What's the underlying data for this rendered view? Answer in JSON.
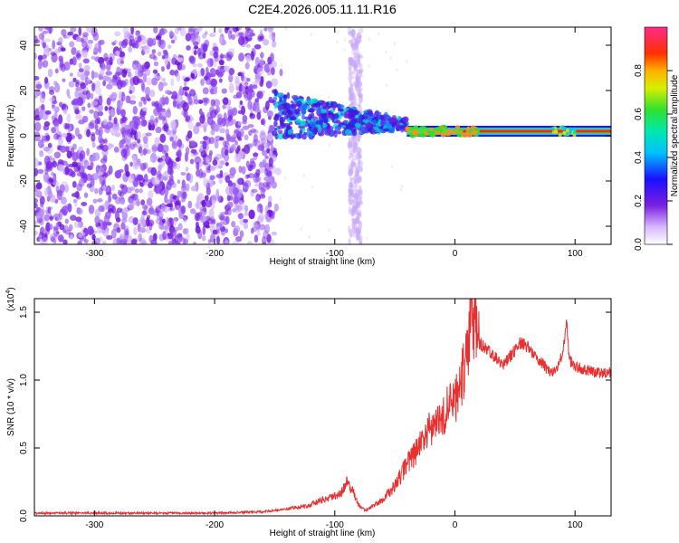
{
  "title": "C2E4.2026.005.11.11.R16",
  "chart_data": [
    {
      "type": "heatmap",
      "name": "spectrogram",
      "xlabel": "Height of straight line (km)",
      "ylabel": "Frequency (Hz)",
      "xlim": [
        -350,
        130
      ],
      "ylim": [
        -48,
        48
      ],
      "xticks": [
        -300,
        -200,
        -100,
        0,
        100
      ],
      "yticks": [
        -40,
        -20,
        0,
        20,
        40
      ],
      "xtick_labels": [
        "-300",
        "-200",
        "-100",
        "0",
        "100"
      ],
      "ytick_labels": [
        "-40",
        "-20",
        "0",
        "20",
        "40"
      ],
      "regions": [
        {
          "description": "broadband noise",
          "x_range": [
            -350,
            -150
          ],
          "f_range": [
            -48,
            48
          ],
          "amplitude": 0.15
        },
        {
          "description": "noise band",
          "x_range": [
            -88,
            -78
          ],
          "f_range": [
            -48,
            48
          ],
          "amplitude": 0.1
        },
        {
          "description": "signal onset",
          "x_range": [
            -150,
            -40
          ],
          "f_center": 5,
          "amplitude": 0.35
        },
        {
          "description": "carrier line",
          "x_range": [
            -40,
            130
          ],
          "f_center": 2,
          "amplitude": 0.9
        }
      ],
      "colorbar": {
        "label": "Normalized spectral amplitude",
        "range": [
          0,
          1
        ],
        "ticks": [
          0.0,
          0.2,
          0.4,
          0.6,
          0.8
        ],
        "tick_labels": [
          "0.0",
          "0.2",
          "0.4",
          "0.6",
          "0.8"
        ]
      }
    },
    {
      "type": "line",
      "name": "snr",
      "xlabel": "Height of straight line (km)",
      "ylabel": "SNR (10 * v/v)",
      "scale_label": "(x10",
      "scale_exp": "4",
      "scale_close": ")",
      "xlim": [
        -350,
        130
      ],
      "ylim": [
        0,
        1.6
      ],
      "xticks": [
        -300,
        -200,
        -100,
        0,
        100
      ],
      "yticks": [
        0.0,
        0.5,
        1.0,
        1.5
      ],
      "xtick_labels": [
        "-300",
        "-200",
        "-100",
        "0",
        "100"
      ],
      "ytick_labels": [
        "0.0",
        "0.5",
        "1.0",
        "1.5"
      ],
      "color": "#e83030",
      "series": [
        {
          "name": "SNR",
          "x": [
            -350,
            -300,
            -250,
            -200,
            -160,
            -140,
            -120,
            -110,
            -100,
            -95,
            -90,
            -85,
            -80,
            -75,
            -70,
            -60,
            -50,
            -40,
            -30,
            -20,
            -10,
            0,
            5,
            10,
            13,
            20,
            30,
            40,
            50,
            55,
            60,
            70,
            80,
            85,
            90,
            93,
            95,
            100,
            110,
            120,
            130
          ],
          "y": [
            0.02,
            0.02,
            0.02,
            0.02,
            0.03,
            0.05,
            0.08,
            0.12,
            0.14,
            0.16,
            0.25,
            0.18,
            0.08,
            0.04,
            0.06,
            0.12,
            0.22,
            0.38,
            0.5,
            0.65,
            0.75,
            0.85,
            1.0,
            1.15,
            1.55,
            1.28,
            1.2,
            1.1,
            1.22,
            1.28,
            1.25,
            1.15,
            1.05,
            1.08,
            1.2,
            1.45,
            1.15,
            1.1,
            1.07,
            1.05,
            1.06
          ]
        }
      ]
    }
  ]
}
